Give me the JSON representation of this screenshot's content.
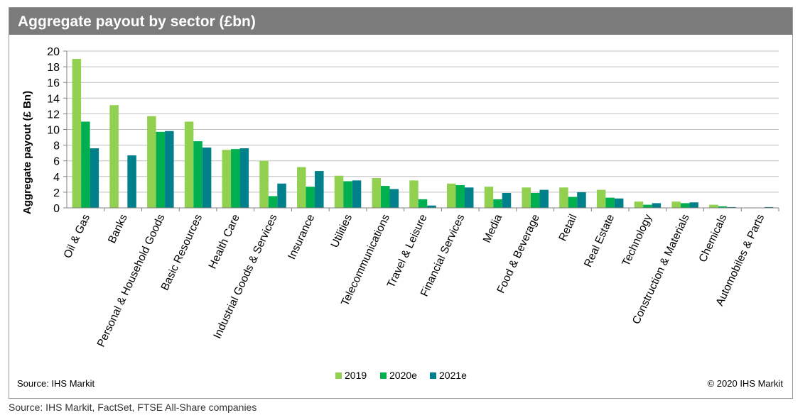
{
  "title": "Aggregate payout by sector (£bn)",
  "source_inner": "Source: IHS Markit",
  "copyright": "© 2020 IHS Markit",
  "source_outer": "Source: IHS Markit, FactSet, FTSE All-Share companies",
  "colors": {
    "title_bar": "#7b7b7b",
    "s2019": "#92d050",
    "s2020": "#00b050",
    "s2021": "#00808a",
    "grid": "#bfbfbf"
  },
  "chart_data": {
    "type": "bar",
    "title": "Aggregate payout by sector (£bn)",
    "ylabel": "Aggregate payout (£ Bn)",
    "xlabel": "",
    "ylim": [
      0,
      20
    ],
    "yticks": [
      0,
      2,
      4,
      6,
      8,
      10,
      12,
      14,
      16,
      18,
      20
    ],
    "grid": true,
    "legend_position": "bottom-center",
    "categories": [
      "Oil & Gas",
      "Banks",
      "Personal & Household Goods",
      "Basic Resources",
      "Health Care",
      "Industrial Goods & Services",
      "Insurance",
      "Utilities",
      "Telecommunications",
      "Travel & Leisure",
      "Financial Services",
      "Media",
      "Food & Beverage",
      "Retail",
      "Real Estate",
      "Technology",
      "Construction & Materials",
      "Chemicals",
      "Automobiles & Parts"
    ],
    "series": [
      {
        "name": "2019",
        "color": "#92d050",
        "values": [
          19.0,
          13.1,
          11.7,
          11.0,
          7.4,
          6.0,
          5.2,
          4.1,
          3.8,
          3.5,
          3.1,
          2.7,
          2.6,
          2.6,
          2.3,
          0.8,
          0.8,
          0.4,
          0.05
        ]
      },
      {
        "name": "2020e",
        "color": "#00b050",
        "values": [
          11.0,
          0.0,
          9.7,
          8.5,
          7.5,
          1.5,
          2.7,
          3.4,
          2.8,
          1.1,
          2.9,
          1.1,
          1.9,
          1.4,
          1.3,
          0.4,
          0.6,
          0.2,
          0.0
        ]
      },
      {
        "name": "2021e",
        "color": "#00808a",
        "values": [
          7.6,
          6.7,
          9.8,
          7.7,
          7.6,
          3.1,
          4.7,
          3.5,
          2.4,
          0.3,
          2.6,
          1.9,
          2.3,
          2.0,
          1.2,
          0.6,
          0.7,
          0.1,
          0.1
        ]
      }
    ]
  }
}
